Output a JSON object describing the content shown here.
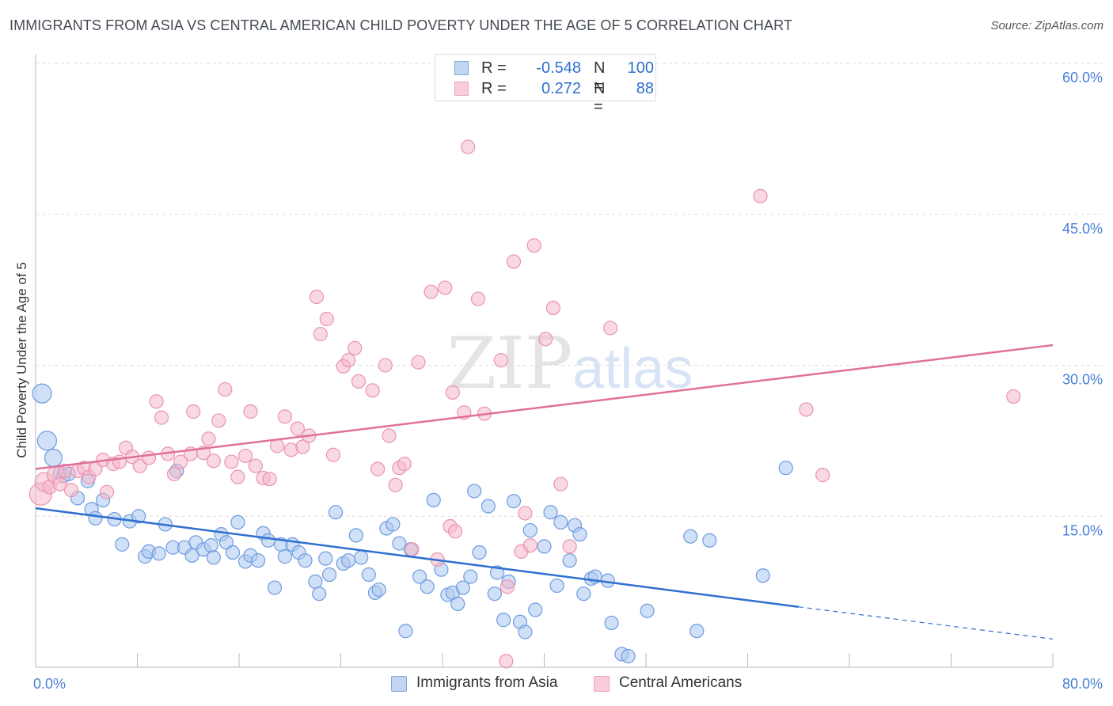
{
  "header": {
    "title": "IMMIGRANTS FROM ASIA VS CENTRAL AMERICAN CHILD POVERTY UNDER THE AGE OF 5 CORRELATION CHART",
    "source": "Source: ZipAtlas.com"
  },
  "watermark": "ZIPatlas",
  "legend_top": {
    "rows": [
      {
        "r_label": "R =",
        "r_value": "-0.548",
        "n_label": "N =",
        "n_value": "100"
      },
      {
        "r_label": "R =",
        "r_value": "0.272",
        "n_label": "N =",
        "n_value": "88"
      }
    ]
  },
  "legend_bottom": {
    "items": [
      "Immigrants from Asia",
      "Central Americans"
    ]
  },
  "colors": {
    "blue_fill": "#a9c6ef",
    "blue_stroke": "#6f9be0",
    "blue_line": "#2f6fd0",
    "pink_fill": "#f5b8ca",
    "pink_stroke": "#e994af",
    "pink_line": "#e0709a",
    "axis_label": "#4a7fd6",
    "grid": "#dcdcdc"
  },
  "chart_data": {
    "type": "scatter",
    "title": "IMMIGRANTS FROM ASIA VS CENTRAL AMERICAN CHILD POVERTY UNDER THE AGE OF 5 CORRELATION CHART",
    "xlabel": "",
    "ylabel": "Child Poverty Under the Age of 5",
    "xlim": [
      0,
      80
    ],
    "ylim": [
      0,
      60
    ],
    "x_tick_labels": [
      {
        "v": 0,
        "label": "0.0%"
      },
      {
        "v": 80,
        "label": "80.0%"
      }
    ],
    "y_ticks": [
      {
        "v": 15,
        "label": "15.0%"
      },
      {
        "v": 30,
        "label": "30.0%"
      },
      {
        "v": 45,
        "label": "45.0%"
      },
      {
        "v": 60,
        "label": "60.0%"
      }
    ],
    "x_minor_ticks": [
      0,
      8,
      16,
      24,
      32,
      40,
      48,
      56,
      64,
      72,
      80
    ],
    "grid": true,
    "legend_position": "bottom",
    "series": [
      {
        "name": "Immigrants from Asia",
        "color": "#a9c6ef",
        "trend": {
          "x0": 0,
          "y0": 15.8,
          "x1": 60,
          "y1": 6.0,
          "dash_to_x": 80,
          "dash_to_y": 2.8
        },
        "points": [
          [
            0.5,
            27.2
          ],
          [
            0.9,
            22.5
          ],
          [
            1.4,
            20.8
          ],
          [
            1.9,
            19.3
          ],
          [
            2.2,
            19.0
          ],
          [
            2.6,
            19.2
          ],
          [
            3.3,
            16.8
          ],
          [
            4.1,
            18.5
          ],
          [
            4.4,
            15.7
          ],
          [
            4.7,
            14.8
          ],
          [
            5.3,
            16.6
          ],
          [
            6.2,
            14.7
          ],
          [
            6.8,
            12.2
          ],
          [
            7.4,
            14.5
          ],
          [
            8.1,
            15.0
          ],
          [
            8.6,
            11.0
          ],
          [
            8.9,
            11.5
          ],
          [
            9.7,
            11.3
          ],
          [
            10.2,
            14.2
          ],
          [
            10.8,
            11.9
          ],
          [
            11.1,
            19.5
          ],
          [
            11.7,
            11.9
          ],
          [
            12.3,
            11.1
          ],
          [
            12.6,
            12.4
          ],
          [
            13.2,
            11.7
          ],
          [
            13.8,
            12.1
          ],
          [
            14.0,
            10.9
          ],
          [
            14.6,
            13.2
          ],
          [
            15.0,
            12.4
          ],
          [
            15.5,
            11.4
          ],
          [
            15.9,
            14.4
          ],
          [
            16.5,
            10.5
          ],
          [
            16.9,
            11.1
          ],
          [
            17.5,
            10.6
          ],
          [
            17.9,
            13.3
          ],
          [
            18.3,
            12.6
          ],
          [
            18.8,
            7.9
          ],
          [
            19.3,
            12.2
          ],
          [
            19.6,
            11.0
          ],
          [
            20.2,
            12.2
          ],
          [
            20.7,
            11.4
          ],
          [
            21.2,
            10.6
          ],
          [
            22.0,
            8.5
          ],
          [
            22.3,
            7.3
          ],
          [
            22.8,
            10.8
          ],
          [
            23.1,
            9.2
          ],
          [
            23.6,
            15.4
          ],
          [
            24.2,
            10.3
          ],
          [
            24.6,
            10.6
          ],
          [
            25.2,
            13.1
          ],
          [
            25.6,
            10.9
          ],
          [
            26.2,
            9.2
          ],
          [
            26.7,
            7.4
          ],
          [
            27.0,
            7.7
          ],
          [
            27.6,
            13.8
          ],
          [
            28.1,
            14.2
          ],
          [
            28.6,
            12.3
          ],
          [
            29.1,
            3.6
          ],
          [
            29.5,
            11.7
          ],
          [
            30.2,
            9.0
          ],
          [
            30.8,
            8.0
          ],
          [
            31.3,
            16.6
          ],
          [
            31.9,
            9.7
          ],
          [
            32.4,
            7.2
          ],
          [
            32.8,
            7.4
          ],
          [
            33.2,
            6.3
          ],
          [
            33.6,
            7.9
          ],
          [
            34.2,
            9.0
          ],
          [
            34.5,
            17.5
          ],
          [
            34.9,
            11.4
          ],
          [
            35.6,
            16.0
          ],
          [
            36.1,
            7.3
          ],
          [
            36.3,
            9.4
          ],
          [
            36.8,
            4.7
          ],
          [
            37.2,
            8.5
          ],
          [
            37.6,
            16.5
          ],
          [
            38.1,
            4.5
          ],
          [
            38.5,
            3.5
          ],
          [
            38.9,
            13.6
          ],
          [
            39.3,
            5.7
          ],
          [
            40.0,
            12.0
          ],
          [
            40.5,
            15.4
          ],
          [
            41.0,
            8.1
          ],
          [
            41.3,
            14.4
          ],
          [
            42.0,
            10.6
          ],
          [
            42.4,
            14.1
          ],
          [
            42.8,
            13.2
          ],
          [
            43.1,
            7.3
          ],
          [
            43.7,
            8.8
          ],
          [
            44.0,
            9.0
          ],
          [
            45.0,
            8.6
          ],
          [
            46.1,
            1.3
          ],
          [
            46.6,
            1.1
          ],
          [
            48.1,
            5.6
          ],
          [
            51.5,
            13.0
          ],
          [
            52.0,
            3.6
          ],
          [
            57.2,
            9.1
          ],
          [
            59.0,
            19.8
          ],
          [
            45.3,
            4.4
          ],
          [
            53.0,
            12.6
          ]
        ]
      },
      {
        "name": "Central Americans",
        "color": "#f5b8ca",
        "trend": {
          "x0": 0,
          "y0": 19.7,
          "x1": 80,
          "y1": 32.0
        },
        "points": [
          [
            0.4,
            17.2
          ],
          [
            0.7,
            18.4
          ],
          [
            1.1,
            17.9
          ],
          [
            1.6,
            19.1
          ],
          [
            1.9,
            18.2
          ],
          [
            2.3,
            19.5
          ],
          [
            2.8,
            17.6
          ],
          [
            3.3,
            19.5
          ],
          [
            3.8,
            19.8
          ],
          [
            4.2,
            18.9
          ],
          [
            4.7,
            19.7
          ],
          [
            5.3,
            20.6
          ],
          [
            5.6,
            17.4
          ],
          [
            6.1,
            20.2
          ],
          [
            6.6,
            20.4
          ],
          [
            7.1,
            21.8
          ],
          [
            7.6,
            20.9
          ],
          [
            8.2,
            20.0
          ],
          [
            8.9,
            20.8
          ],
          [
            9.5,
            26.4
          ],
          [
            9.9,
            24.8
          ],
          [
            10.4,
            21.2
          ],
          [
            10.9,
            19.2
          ],
          [
            11.4,
            20.4
          ],
          [
            12.2,
            21.2
          ],
          [
            12.4,
            25.4
          ],
          [
            13.2,
            21.3
          ],
          [
            13.6,
            22.7
          ],
          [
            14.0,
            20.5
          ],
          [
            14.4,
            24.5
          ],
          [
            14.9,
            27.6
          ],
          [
            15.4,
            20.4
          ],
          [
            15.9,
            18.9
          ],
          [
            16.5,
            21.0
          ],
          [
            16.9,
            25.4
          ],
          [
            17.3,
            20.0
          ],
          [
            17.9,
            18.8
          ],
          [
            18.4,
            18.7
          ],
          [
            19.0,
            22.0
          ],
          [
            19.6,
            24.9
          ],
          [
            20.1,
            21.6
          ],
          [
            20.6,
            23.7
          ],
          [
            21.0,
            21.9
          ],
          [
            21.5,
            23.0
          ],
          [
            22.1,
            36.8
          ],
          [
            22.4,
            33.1
          ],
          [
            22.9,
            34.6
          ],
          [
            23.4,
            21.1
          ],
          [
            24.2,
            29.9
          ],
          [
            24.6,
            30.5
          ],
          [
            25.1,
            31.7
          ],
          [
            25.4,
            28.4
          ],
          [
            26.5,
            27.5
          ],
          [
            26.9,
            19.7
          ],
          [
            27.5,
            30.0
          ],
          [
            27.8,
            23.0
          ],
          [
            28.3,
            18.1
          ],
          [
            28.6,
            19.8
          ],
          [
            29.0,
            20.2
          ],
          [
            29.6,
            11.7
          ],
          [
            30.1,
            30.3
          ],
          [
            31.1,
            37.3
          ],
          [
            31.6,
            10.7
          ],
          [
            32.2,
            37.7
          ],
          [
            32.6,
            14.0
          ],
          [
            33.0,
            13.5
          ],
          [
            33.7,
            25.3
          ],
          [
            34.8,
            36.6
          ],
          [
            35.3,
            25.2
          ],
          [
            36.6,
            30.5
          ],
          [
            37.1,
            8.0
          ],
          [
            37.6,
            40.3
          ],
          [
            38.2,
            11.5
          ],
          [
            38.9,
            12.1
          ],
          [
            39.2,
            41.9
          ],
          [
            40.1,
            32.6
          ],
          [
            40.7,
            35.7
          ],
          [
            41.3,
            18.2
          ],
          [
            42.0,
            12.0
          ],
          [
            45.2,
            33.7
          ],
          [
            34.0,
            51.7
          ],
          [
            57.0,
            46.8
          ],
          [
            60.6,
            25.6
          ],
          [
            61.9,
            19.1
          ],
          [
            76.9,
            26.9
          ],
          [
            37.0,
            0.6
          ],
          [
            38.5,
            15.3
          ],
          [
            32.8,
            27.3
          ]
        ]
      }
    ]
  }
}
